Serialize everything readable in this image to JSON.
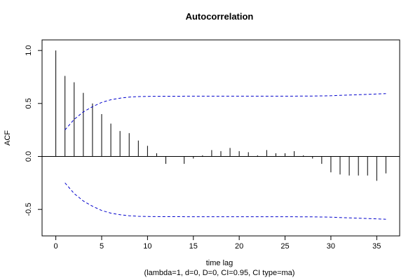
{
  "chart_data": {
    "type": "bar",
    "title": "Autocorrelation",
    "xlabel": "time lag",
    "subtitle": "(lambda=1, d=0, D=0, CI=0.95, CI type=ma)",
    "ylabel": "ACF",
    "xlim": [
      -1.5,
      37.5
    ],
    "ylim": [
      -0.75,
      1.1
    ],
    "x_ticks": [
      0,
      5,
      10,
      15,
      20,
      25,
      30,
      35
    ],
    "y_ticks": [
      -0.5,
      0.0,
      0.5,
      1.0
    ],
    "x_tick_labels": [
      "0",
      "5",
      "10",
      "15",
      "20",
      "25",
      "30",
      "35"
    ],
    "y_tick_labels": [
      "-0.5",
      "0.0",
      "0.5",
      "1.0"
    ],
    "series": [
      {
        "lags": [
          0,
          1,
          2,
          3,
          4,
          5,
          6,
          7,
          8,
          9,
          10,
          11,
          12,
          13,
          14,
          15,
          16,
          17,
          18,
          19,
          20,
          21,
          22,
          23,
          24,
          25,
          26,
          27,
          28,
          29,
          30,
          31,
          32,
          33,
          34,
          35,
          36
        ],
        "values": [
          1.0,
          0.76,
          0.7,
          0.6,
          0.5,
          0.4,
          0.31,
          0.24,
          0.22,
          0.15,
          0.1,
          0.03,
          -0.07,
          0.0,
          -0.07,
          -0.02,
          0.01,
          0.06,
          0.05,
          0.08,
          0.05,
          0.04,
          0.01,
          0.06,
          0.03,
          0.03,
          0.05,
          0.01,
          -0.02,
          -0.07,
          -0.15,
          -0.17,
          -0.18,
          -0.18,
          -0.18,
          -0.23,
          -0.16
        ]
      }
    ],
    "confidence_band": {
      "lags": [
        1,
        2,
        3,
        4,
        5,
        6,
        7,
        8,
        9,
        10,
        12,
        15,
        20,
        25,
        28,
        30,
        32,
        34,
        36
      ],
      "upper": [
        0.25,
        0.35,
        0.42,
        0.47,
        0.51,
        0.535,
        0.55,
        0.56,
        0.565,
        0.567,
        0.568,
        0.569,
        0.569,
        0.569,
        0.57,
        0.573,
        0.58,
        0.586,
        0.593
      ],
      "color": "#0000cc"
    },
    "colors": {
      "bars": "#000000",
      "ci": "#0000cc",
      "zero_line": "#000000"
    },
    "grid": false,
    "legend": "none"
  }
}
